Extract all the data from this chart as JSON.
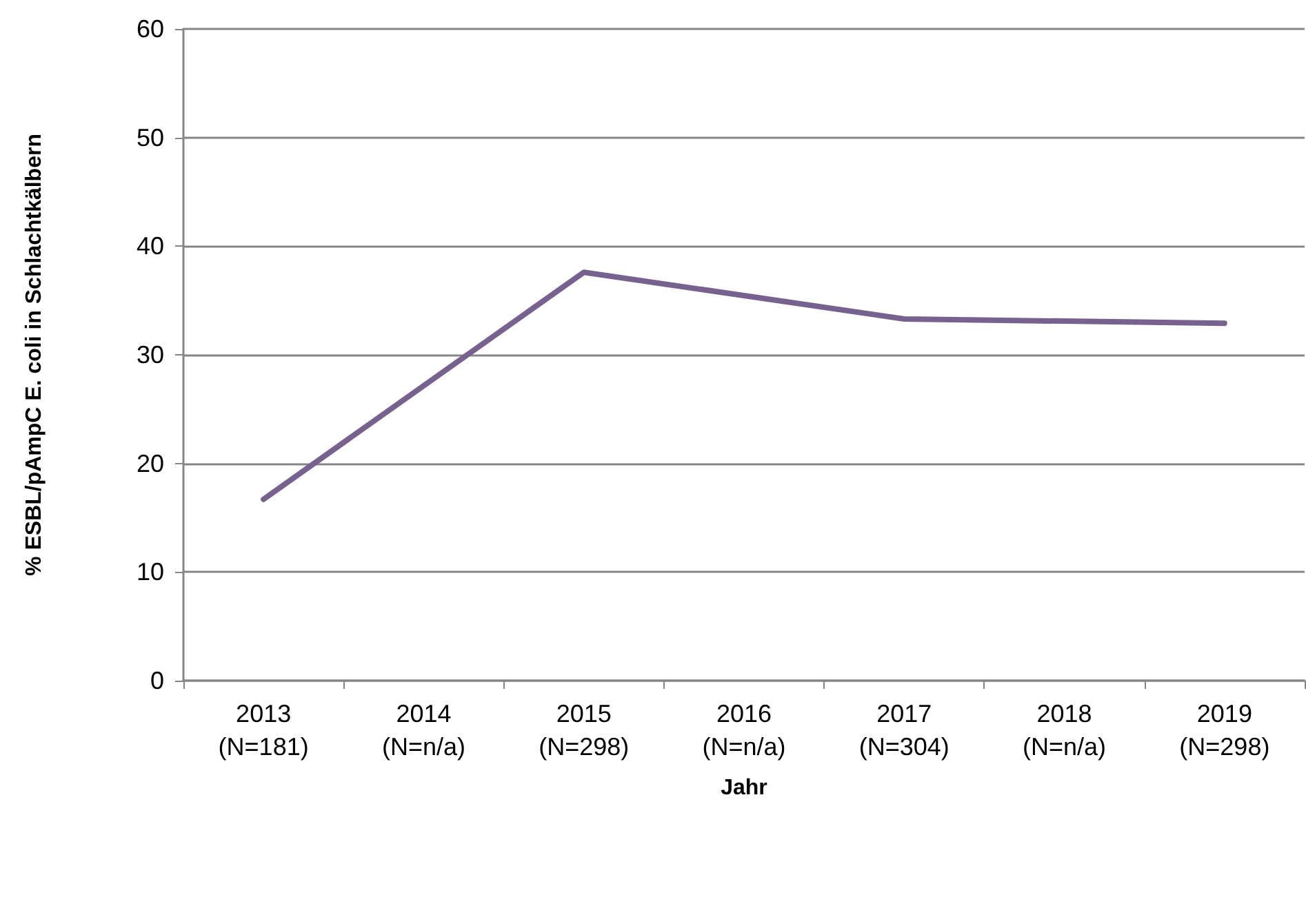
{
  "chart_data": {
    "type": "line",
    "xlabel": "Jahr",
    "ylabel": "% ESBL/pAmpC E. coli in Schlachtkälbern",
    "categories": [
      "2013\n(N=181)",
      "2014\n(N=n/a)",
      "2015\n(N=298)",
      "2016\n(N=n/a)",
      "2017\n(N=304)",
      "2018\n(N=n/a)",
      "2019\n(N=298)"
    ],
    "series": [
      {
        "color": "#77618f",
        "values": [
          16.7,
          null,
          37.6,
          null,
          33.3,
          null,
          32.9
        ]
      }
    ],
    "ylim": [
      0,
      60
    ],
    "yticks": [
      0,
      10,
      20,
      30,
      40,
      50,
      60
    ],
    "grid": "y",
    "marker": "none",
    "line_style": "solid"
  }
}
